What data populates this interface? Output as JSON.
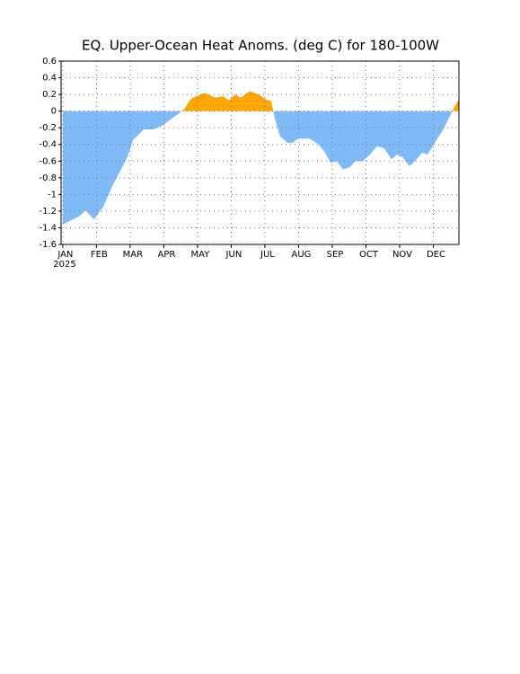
{
  "chart_data": {
    "type": "area",
    "title": "EQ. Upper-Ocean Heat Anoms. (deg C) for 180-100W",
    "year_label": "2025",
    "x": [
      0,
      0.5,
      0.67,
      0.93,
      1.2,
      1.47,
      1.73,
      1.92,
      2.08,
      2.4,
      2.67,
      2.93,
      3.2,
      3.47,
      3.6,
      3.81,
      4.21,
      4.53,
      4.75,
      4.93,
      5.12,
      5.28,
      5.55,
      5.81,
      6.03,
      6.19,
      6.27,
      6.45,
      6.67,
      6.83,
      6.99,
      7.33,
      7.6,
      7.79,
      7.95,
      8.13,
      8.32,
      8.53,
      8.69,
      8.91,
      9.12,
      9.33,
      9.55,
      9.76,
      9.92,
      10.08,
      10.29,
      10.45,
      10.67,
      10.83,
      11.04,
      11.25,
      11.47,
      11.57,
      11.76
    ],
    "values": [
      -1.36,
      -1.26,
      -1.19,
      -1.3,
      -1.15,
      -0.9,
      -0.7,
      -0.55,
      -0.35,
      -0.22,
      -0.22,
      -0.18,
      -0.1,
      -0.02,
      0.02,
      0.15,
      0.22,
      0.16,
      0.18,
      0.13,
      0.2,
      0.16,
      0.24,
      0.2,
      0.14,
      0.12,
      -0.05,
      -0.3,
      -0.38,
      -0.38,
      -0.33,
      -0.33,
      -0.4,
      -0.5,
      -0.62,
      -0.6,
      -0.7,
      -0.67,
      -0.6,
      -0.6,
      -0.52,
      -0.42,
      -0.45,
      -0.58,
      -0.52,
      -0.55,
      -0.66,
      -0.6,
      -0.5,
      -0.52,
      -0.38,
      -0.25,
      -0.08,
      0.0,
      0.15
    ],
    "colors": {
      "positive": "#ffa500",
      "negative": "#80b9f7"
    },
    "xlim": [
      -0.05,
      11.76
    ],
    "xticks": [
      {
        "value": 0,
        "label": "JAN"
      },
      {
        "value": 1,
        "label": "FEB"
      },
      {
        "value": 2,
        "label": "MAR"
      },
      {
        "value": 3,
        "label": "APR"
      },
      {
        "value": 4,
        "label": "MAY"
      },
      {
        "value": 5,
        "label": "JUN"
      },
      {
        "value": 6,
        "label": "JUL"
      },
      {
        "value": 7,
        "label": "AUG"
      },
      {
        "value": 8,
        "label": "SEP"
      },
      {
        "value": 9,
        "label": "OCT"
      },
      {
        "value": 10,
        "label": "NOV"
      },
      {
        "value": 11,
        "label": "DEC"
      }
    ],
    "ylim": [
      -1.6,
      0.6
    ],
    "yticks": [
      0.6,
      0.4,
      0.2,
      0,
      -0.2,
      -0.4,
      -0.6,
      -0.8,
      -1,
      -1.2,
      -1.4,
      -1.6
    ],
    "grid": true
  }
}
